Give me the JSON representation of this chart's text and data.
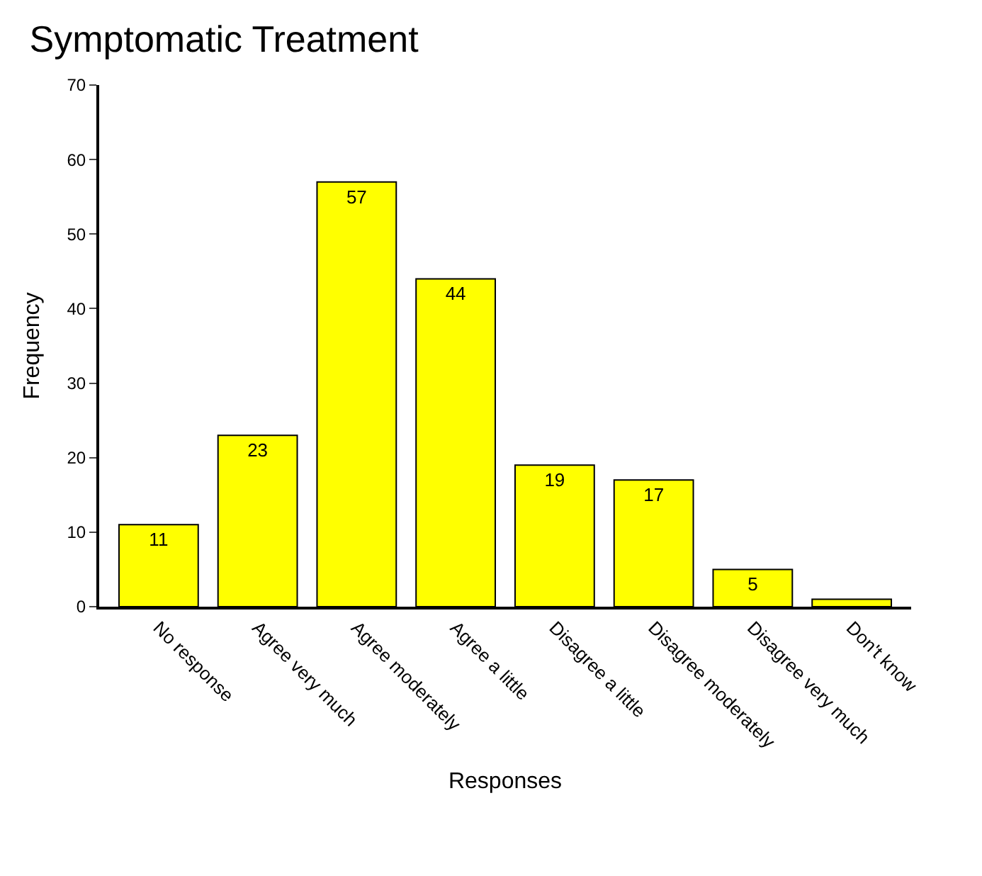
{
  "chart_data": {
    "type": "bar",
    "title": "Symptomatic Treatment",
    "xlabel": "Responses",
    "ylabel": "Frequency",
    "categories": [
      "No response",
      "Agree very much",
      "Agree moderately",
      "Agree a little",
      "Disagree a little",
      "Disagree moderately",
      "Disagree very much",
      "Don't know"
    ],
    "values": [
      11,
      23,
      57,
      44,
      19,
      17,
      5,
      1
    ],
    "value_labels": [
      "11",
      "23",
      "57",
      "44",
      "19",
      "17",
      "5",
      null
    ],
    "color": "#ffff00",
    "ylim": [
      0,
      70
    ],
    "yticks": [
      0,
      10,
      20,
      30,
      40,
      50,
      60,
      70
    ]
  }
}
